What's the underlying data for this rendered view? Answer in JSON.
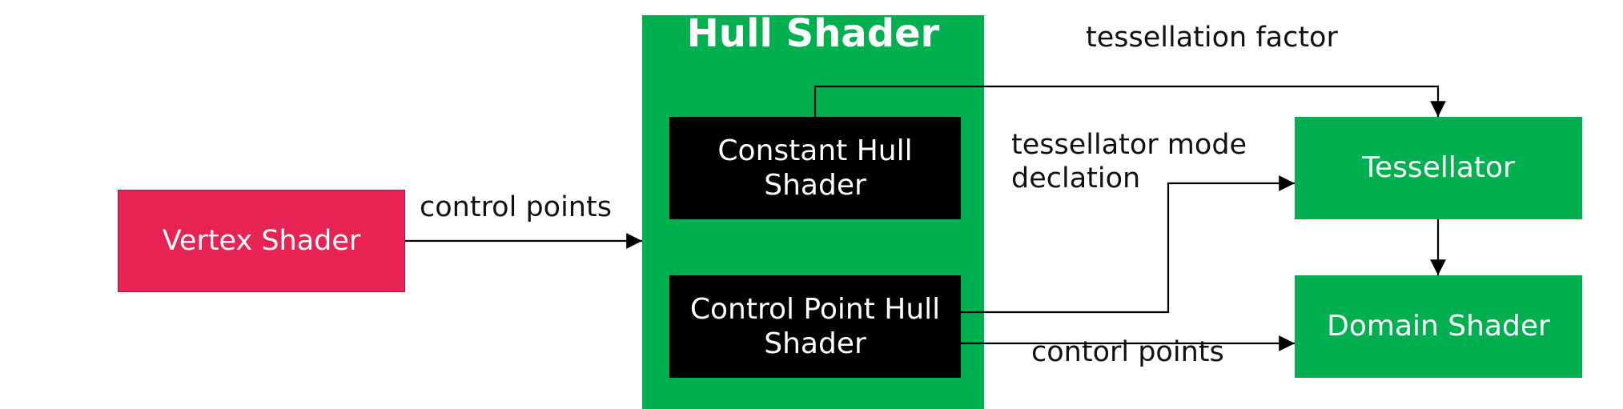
{
  "nodes": {
    "vertex_shader": "Vertex Shader",
    "hull_shader_title": "Hull Shader",
    "constant_hull_shader": [
      "Constant Hull",
      "Shader"
    ],
    "control_point_hull_shader": [
      "Control Point Hull",
      "Shader"
    ],
    "tessellator": "Tessellator",
    "domain_shader": "Domain Shader"
  },
  "edge_labels": {
    "vertex_to_hull": "control points",
    "constant_to_tessellator": "tessellation factor",
    "control_to_tessellator": [
      "tessellator mode",
      "declation"
    ],
    "control_to_domain": "contorl points"
  },
  "colors": {
    "vertex_fill": "#e72353",
    "green_fill": "#00b04f",
    "inner_fill": "#000000",
    "text_light": "#ffffff",
    "text_dark": "#111111",
    "arrow": "#000000"
  }
}
